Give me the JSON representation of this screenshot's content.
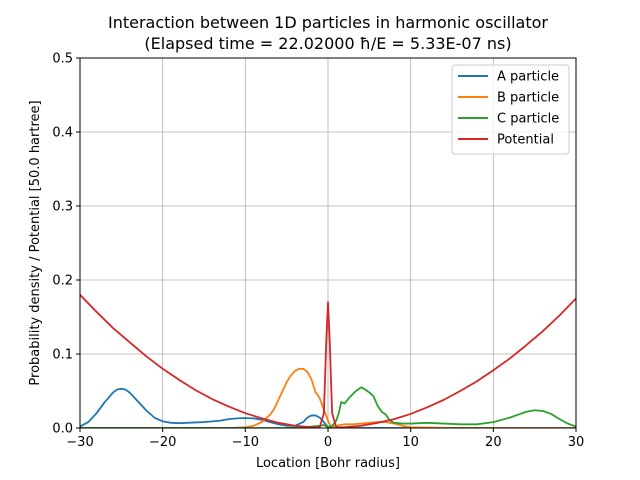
{
  "chart_data": {
    "type": "line",
    "title": "Interaction between 1D particles in harmonic oscillator",
    "subtitle": "(Elapsed time = 22.02000 ħ/E = 5.33E-07 ns)",
    "xlabel": "Location [Bohr radius]",
    "ylabel": "Probability density / Potential [50.0 hartree]",
    "xlim": [
      -30,
      30
    ],
    "ylim": [
      0,
      0.5
    ],
    "xticks": [
      -30,
      -20,
      -10,
      0,
      10,
      20,
      30
    ],
    "yticks": [
      0.0,
      0.1,
      0.2,
      0.3,
      0.4,
      0.5
    ],
    "xtick_labels": [
      "−30",
      "−20",
      "−10",
      "0",
      "10",
      "20",
      "30"
    ],
    "ytick_labels": [
      "0.0",
      "0.1",
      "0.2",
      "0.3",
      "0.4",
      "0.5"
    ],
    "grid": true,
    "legend_position": "top-right",
    "series": [
      {
        "name": "A particle",
        "color": "#1f77b4",
        "x": [
          -30,
          -29,
          -28,
          -27,
          -26,
          -25.5,
          -25,
          -24.5,
          -24,
          -23,
          -22,
          -21,
          -20,
          -19,
          -18,
          -17,
          -16,
          -15,
          -14,
          -13,
          -12,
          -11,
          -10,
          -9,
          -8,
          -7,
          -6,
          -5,
          -4,
          -3,
          -2.5,
          -2,
          -1.5,
          -1,
          -0.5,
          0,
          0.5,
          1,
          2,
          4,
          6,
          10,
          20,
          30
        ],
        "y": [
          0.002,
          0.008,
          0.02,
          0.035,
          0.048,
          0.052,
          0.053,
          0.052,
          0.048,
          0.036,
          0.024,
          0.014,
          0.009,
          0.007,
          0.0065,
          0.007,
          0.0075,
          0.008,
          0.009,
          0.01,
          0.012,
          0.013,
          0.0135,
          0.013,
          0.011,
          0.008,
          0.005,
          0.003,
          0.003,
          0.008,
          0.014,
          0.017,
          0.017,
          0.014,
          0.008,
          0.001,
          0.0,
          0.0,
          0.0,
          0.0,
          0.0,
          0.0,
          0.0,
          0.0
        ]
      },
      {
        "name": "B particle",
        "color": "#ff7f0e",
        "x": [
          -30,
          -20,
          -12,
          -10,
          -9,
          -8,
          -7,
          -6.5,
          -6,
          -5.5,
          -5,
          -4.5,
          -4,
          -3.5,
          -3,
          -2.5,
          -2,
          -1.7,
          -1.5,
          -1.2,
          -1,
          -0.5,
          0,
          0.3,
          0.6,
          1,
          1.5,
          2,
          3,
          4,
          5,
          6,
          7,
          8,
          9,
          10,
          15,
          30
        ],
        "y": [
          0.0,
          0.0,
          0.0,
          0.001,
          0.003,
          0.008,
          0.018,
          0.026,
          0.038,
          0.05,
          0.062,
          0.071,
          0.077,
          0.08,
          0.08,
          0.076,
          0.066,
          0.055,
          0.048,
          0.044,
          0.04,
          0.025,
          0.01,
          0.003,
          0.002,
          0.003,
          0.004,
          0.005,
          0.005,
          0.006,
          0.007,
          0.008,
          0.008,
          0.006,
          0.003,
          0.001,
          0.0,
          0.0
        ]
      },
      {
        "name": "C particle",
        "color": "#2ca02c",
        "x": [
          -30,
          -10,
          -5,
          -3,
          -1,
          -0.5,
          0,
          0.5,
          1,
          1.3,
          1.6,
          2,
          2.5,
          3,
          3.5,
          4,
          4.5,
          5,
          5.5,
          6,
          6.5,
          7,
          7.5,
          8,
          9,
          10,
          12,
          14,
          16,
          18,
          20,
          22,
          23,
          24,
          25,
          26,
          27,
          28,
          29,
          30
        ],
        "y": [
          0.0,
          0.0,
          0.0,
          0.001,
          0.003,
          0.004,
          0.001,
          0.003,
          0.01,
          0.02,
          0.035,
          0.033,
          0.04,
          0.046,
          0.051,
          0.055,
          0.052,
          0.048,
          0.043,
          0.03,
          0.022,
          0.018,
          0.01,
          0.007,
          0.006,
          0.006,
          0.007,
          0.006,
          0.005,
          0.005,
          0.008,
          0.014,
          0.018,
          0.022,
          0.024,
          0.023,
          0.019,
          0.012,
          0.006,
          0.002
        ]
      },
      {
        "name": "Potential",
        "color": "#d62728",
        "x": [
          -30,
          -28,
          -26,
          -24,
          -22,
          -20,
          -18,
          -16,
          -14,
          -12,
          -10,
          -8,
          -6,
          -4,
          -2,
          -1,
          -0.5,
          -0.2,
          0,
          0.2,
          0.5,
          1,
          2,
          4,
          6,
          8,
          10,
          12,
          14,
          16,
          18,
          20,
          22,
          24,
          26,
          28,
          30
        ],
        "y": [
          0.18,
          0.157,
          0.135,
          0.116,
          0.097,
          0.08,
          0.065,
          0.051,
          0.039,
          0.029,
          0.02,
          0.013,
          0.007,
          0.003,
          0.001,
          0.001,
          0.02,
          0.12,
          0.17,
          0.12,
          0.02,
          0.001,
          0.001,
          0.003,
          0.007,
          0.012,
          0.019,
          0.028,
          0.038,
          0.05,
          0.063,
          0.078,
          0.094,
          0.112,
          0.131,
          0.152,
          0.175
        ]
      }
    ]
  }
}
